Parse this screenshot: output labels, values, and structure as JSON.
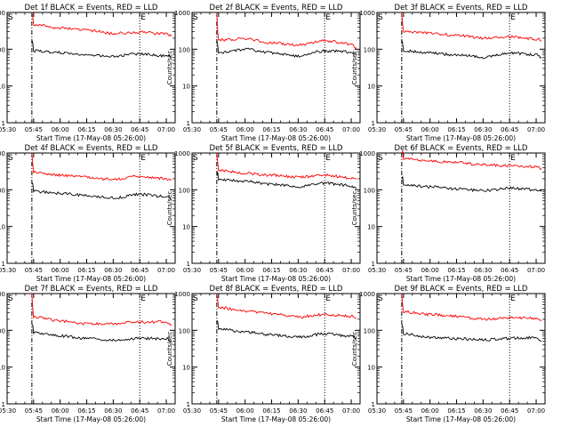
{
  "chart_data": [
    {
      "type": "line",
      "title": "Det 1f BLACK = Events, RED = LLD",
      "xlabel": "Start Time (17-May-08 05:26:00)",
      "ylabel": "Counts/sec",
      "x_ticks": [
        "05:30",
        "05:45",
        "06:00",
        "06:15",
        "06:30",
        "06:45",
        "07:00"
      ],
      "y_ticks": [
        "1",
        "10",
        "100",
        "1000"
      ],
      "ylim": [
        1,
        1000
      ],
      "yscale": "log",
      "xlim": [
        "05:30",
        "07:05"
      ],
      "markers": [
        {
          "label": "S",
          "time": "05:30"
        },
        {
          "label": "E",
          "time": "06:45"
        }
      ],
      "dash_dot_time": "05:44",
      "series": [
        {
          "name": "RED",
          "color": "#ff0000",
          "start_time": "05:44",
          "start_value": 1000,
          "times": [
            "05:45",
            "06:00",
            "06:15",
            "06:30",
            "06:45",
            "07:00",
            "07:03"
          ],
          "values": [
            470,
            380,
            330,
            270,
            290,
            260,
            230
          ]
        },
        {
          "name": "BLACK",
          "color": "#000000",
          "start_time": "05:44",
          "start_value": 180,
          "times": [
            "05:45",
            "06:00",
            "06:15",
            "06:30",
            "06:45",
            "07:00",
            "07:03"
          ],
          "values": [
            90,
            80,
            70,
            65,
            75,
            65,
            60
          ]
        }
      ]
    },
    {
      "type": "line",
      "title": "Det 2f BLACK = Events, RED = LLD",
      "xlabel": "Start Time (17-May-08 05:26:00)",
      "ylabel": "Counts/sec",
      "x_ticks": [
        "05:30",
        "05:45",
        "06:00",
        "06:15",
        "06:30",
        "06:45",
        "07:00"
      ],
      "y_ticks": [
        "1",
        "10",
        "100",
        "1000"
      ],
      "ylim": [
        1,
        1000
      ],
      "yscale": "log",
      "xlim": [
        "05:30",
        "07:05"
      ],
      "markers": [
        {
          "label": "S",
          "time": "05:30"
        },
        {
          "label": "E",
          "time": "06:45"
        }
      ],
      "dash_dot_time": "05:44",
      "series": [
        {
          "name": "RED",
          "color": "#ff0000",
          "start_time": "05:44",
          "start_value": 1000,
          "times": [
            "05:45",
            "06:00",
            "06:15",
            "06:30",
            "06:45",
            "07:00",
            "07:03"
          ],
          "values": [
            180,
            190,
            150,
            130,
            170,
            140,
            110
          ]
        },
        {
          "name": "BLACK",
          "color": "#000000",
          "start_time": "05:44",
          "start_value": 180,
          "times": [
            "05:45",
            "06:00",
            "06:15",
            "06:30",
            "06:45",
            "07:00",
            "07:03"
          ],
          "values": [
            80,
            100,
            80,
            65,
            90,
            85,
            70
          ]
        }
      ]
    },
    {
      "type": "line",
      "title": "Det 3f BLACK = Events, RED = LLD",
      "xlabel": "Start Time (17-May-08 05:26:00)",
      "ylabel": "Counts/sec",
      "x_ticks": [
        "05:30",
        "05:45",
        "06:00",
        "06:15",
        "06:30",
        "06:45",
        "07:00"
      ],
      "y_ticks": [
        "1",
        "10",
        "100",
        "1000"
      ],
      "ylim": [
        1,
        1000
      ],
      "yscale": "log",
      "xlim": [
        "05:30",
        "07:05"
      ],
      "markers": [
        {
          "label": "S",
          "time": "05:30"
        },
        {
          "label": "E",
          "time": "06:45"
        }
      ],
      "dash_dot_time": "05:44",
      "series": [
        {
          "name": "RED",
          "color": "#ff0000",
          "start_time": "05:44",
          "start_value": 1000,
          "times": [
            "05:45",
            "06:00",
            "06:15",
            "06:30",
            "06:45",
            "07:00",
            "07:03"
          ],
          "values": [
            300,
            270,
            240,
            200,
            220,
            190,
            170
          ]
        },
        {
          "name": "BLACK",
          "color": "#000000",
          "start_time": "05:44",
          "start_value": 180,
          "times": [
            "05:45",
            "06:00",
            "06:15",
            "06:30",
            "06:45",
            "07:00",
            "07:03"
          ],
          "values": [
            90,
            80,
            70,
            60,
            80,
            70,
            60
          ]
        }
      ]
    },
    {
      "type": "line",
      "title": "Det 4f BLACK = Events, RED = LLD",
      "xlabel": "Start Time (17-May-08 05:26:00)",
      "ylabel": "Counts/sec",
      "x_ticks": [
        "05:30",
        "05:45",
        "06:00",
        "06:15",
        "06:30",
        "06:45",
        "07:00"
      ],
      "y_ticks": [
        "1",
        "10",
        "100",
        "1000"
      ],
      "ylim": [
        1,
        1000
      ],
      "yscale": "log",
      "xlim": [
        "05:30",
        "07:05"
      ],
      "markers": [
        {
          "label": "S",
          "time": "05:30"
        },
        {
          "label": "E",
          "time": "06:45"
        }
      ],
      "dash_dot_time": "05:44",
      "series": [
        {
          "name": "RED",
          "color": "#ff0000",
          "start_time": "05:44",
          "start_value": 1000,
          "times": [
            "05:45",
            "06:00",
            "06:15",
            "06:30",
            "06:45",
            "07:00",
            "07:03"
          ],
          "values": [
            300,
            250,
            220,
            190,
            230,
            200,
            180
          ]
        },
        {
          "name": "BLACK",
          "color": "#000000",
          "start_time": "05:44",
          "start_value": 160,
          "times": [
            "05:45",
            "06:00",
            "06:15",
            "06:30",
            "06:45",
            "07:00",
            "07:03"
          ],
          "values": [
            90,
            80,
            70,
            60,
            75,
            65,
            55
          ]
        }
      ]
    },
    {
      "type": "line",
      "title": "Det 5f BLACK = Events, RED = LLD",
      "xlabel": "Start Time (17-May-08 05:26:00)",
      "ylabel": "Counts/sec",
      "x_ticks": [
        "05:30",
        "05:45",
        "06:00",
        "06:15",
        "06:30",
        "06:45",
        "07:00"
      ],
      "y_ticks": [
        "1",
        "10",
        "100",
        "1000"
      ],
      "ylim": [
        1,
        1000
      ],
      "yscale": "log",
      "xlim": [
        "05:30",
        "07:05"
      ],
      "markers": [
        {
          "label": "S",
          "time": "05:30"
        },
        {
          "label": "E",
          "time": "06:45"
        }
      ],
      "dash_dot_time": "05:44",
      "series": [
        {
          "name": "RED",
          "color": "#ff0000",
          "start_time": "05:44",
          "start_value": 1000,
          "times": [
            "05:45",
            "06:00",
            "06:15",
            "06:30",
            "06:45",
            "07:00",
            "07:03"
          ],
          "values": [
            340,
            280,
            250,
            220,
            250,
            210,
            190
          ]
        },
        {
          "name": "BLACK",
          "color": "#000000",
          "start_time": "05:44",
          "start_value": 240,
          "times": [
            "05:45",
            "06:00",
            "06:15",
            "06:30",
            "06:45",
            "07:00",
            "07:03"
          ],
          "values": [
            190,
            170,
            140,
            120,
            150,
            130,
            110
          ]
        }
      ]
    },
    {
      "type": "line",
      "title": "Det 6f BLACK = Events, RED = LLD",
      "xlabel": "Start Time (17-May-08 05:26:00)",
      "ylabel": "Counts/sec",
      "x_ticks": [
        "05:30",
        "05:45",
        "06:00",
        "06:15",
        "06:30",
        "06:45",
        "07:00"
      ],
      "y_ticks": [
        "1",
        "10",
        "100",
        "1000"
      ],
      "ylim": [
        1,
        1000
      ],
      "yscale": "log",
      "xlim": [
        "05:30",
        "07:05"
      ],
      "markers": [
        {
          "label": "S",
          "time": "05:30"
        },
        {
          "label": "E",
          "time": "06:45"
        }
      ],
      "dash_dot_time": "05:44",
      "series": [
        {
          "name": "RED",
          "color": "#ff0000",
          "start_time": "05:44",
          "start_value": 1000,
          "times": [
            "05:45",
            "06:00",
            "06:15",
            "06:30",
            "06:45",
            "07:00",
            "07:03"
          ],
          "values": [
            700,
            600,
            550,
            480,
            450,
            420,
            380
          ]
        },
        {
          "name": "BLACK",
          "color": "#000000",
          "start_time": "05:44",
          "start_value": 200,
          "times": [
            "05:45",
            "06:00",
            "06:15",
            "06:30",
            "06:45",
            "07:00",
            "07:03"
          ],
          "values": [
            140,
            120,
            105,
            95,
            110,
            100,
            90
          ]
        }
      ]
    },
    {
      "type": "line",
      "title": "Det 7f BLACK = Events, RED = LLD",
      "xlabel": "Start Time (17-May-08 05:26:00)",
      "ylabel": "Counts/sec",
      "x_ticks": [
        "05:30",
        "05:45",
        "06:00",
        "06:15",
        "06:30",
        "06:45",
        "07:00"
      ],
      "y_ticks": [
        "1",
        "10",
        "100",
        "1000"
      ],
      "ylim": [
        1,
        1000
      ],
      "yscale": "log",
      "xlim": [
        "05:30",
        "07:05"
      ],
      "markers": [
        {
          "label": "S",
          "time": "05:30"
        },
        {
          "label": "E",
          "time": "06:45"
        }
      ],
      "dash_dot_time": "05:44",
      "series": [
        {
          "name": "RED",
          "color": "#ff0000",
          "start_time": "05:44",
          "start_value": 1000,
          "times": [
            "05:45",
            "06:00",
            "06:15",
            "06:30",
            "06:45",
            "07:00",
            "07:03"
          ],
          "values": [
            230,
            180,
            150,
            150,
            170,
            170,
            140
          ]
        },
        {
          "name": "BLACK",
          "color": "#000000",
          "start_time": "05:44",
          "start_value": 150,
          "times": [
            "05:45",
            "06:00",
            "06:15",
            "06:30",
            "06:45",
            "07:00",
            "07:03"
          ],
          "values": [
            85,
            70,
            60,
            55,
            60,
            60,
            50
          ]
        }
      ]
    },
    {
      "type": "line",
      "title": "Det 8f BLACK = Events, RED = LLD",
      "xlabel": "Start Time (17-May-08 05:26:00)",
      "ylabel": "Counts/sec",
      "x_ticks": [
        "05:30",
        "05:45",
        "06:00",
        "06:15",
        "06:30",
        "06:45",
        "07:00"
      ],
      "y_ticks": [
        "1",
        "10",
        "100",
        "1000"
      ],
      "ylim": [
        1,
        1000
      ],
      "yscale": "log",
      "xlim": [
        "05:30",
        "07:05"
      ],
      "markers": [
        {
          "label": "S",
          "time": "05:30"
        },
        {
          "label": "E",
          "time": "06:45"
        }
      ],
      "dash_dot_time": "05:44",
      "series": [
        {
          "name": "RED",
          "color": "#ff0000",
          "start_time": "05:44",
          "start_value": 1000,
          "times": [
            "05:45",
            "06:00",
            "06:15",
            "06:30",
            "06:45",
            "07:00",
            "07:03"
          ],
          "values": [
            420,
            330,
            280,
            230,
            270,
            240,
            210
          ]
        },
        {
          "name": "BLACK",
          "color": "#000000",
          "start_time": "05:44",
          "start_value": 170,
          "times": [
            "05:45",
            "06:00",
            "06:15",
            "06:30",
            "06:45",
            "07:00",
            "07:03"
          ],
          "values": [
            110,
            90,
            75,
            65,
            80,
            70,
            60
          ]
        }
      ]
    },
    {
      "type": "line",
      "title": "Det 9f BLACK = Events, RED = LLD",
      "xlabel": "Start Time (17-May-08 05:26:00)",
      "ylabel": "Counts/sec",
      "x_ticks": [
        "05:30",
        "05:45",
        "06:00",
        "06:15",
        "06:30",
        "06:45",
        "07:00"
      ],
      "y_ticks": [
        "1",
        "10",
        "100",
        "1000"
      ],
      "ylim": [
        1,
        1000
      ],
      "yscale": "log",
      "xlim": [
        "05:30",
        "07:05"
      ],
      "markers": [
        {
          "label": "S",
          "time": "05:30"
        },
        {
          "label": "E",
          "time": "06:45"
        }
      ],
      "dash_dot_time": "05:44",
      "series": [
        {
          "name": "RED",
          "color": "#ff0000",
          "start_time": "05:44",
          "start_value": 1000,
          "times": [
            "05:45",
            "06:00",
            "06:15",
            "06:30",
            "06:45",
            "07:00",
            "07:03"
          ],
          "values": [
            320,
            270,
            240,
            200,
            220,
            210,
            180
          ]
        },
        {
          "name": "BLACK",
          "color": "#000000",
          "start_time": "05:44",
          "start_value": 150,
          "times": [
            "05:45",
            "06:00",
            "06:15",
            "06:30",
            "06:45",
            "07:00",
            "07:03"
          ],
          "values": [
            80,
            65,
            60,
            55,
            60,
            65,
            50
          ]
        }
      ]
    }
  ]
}
